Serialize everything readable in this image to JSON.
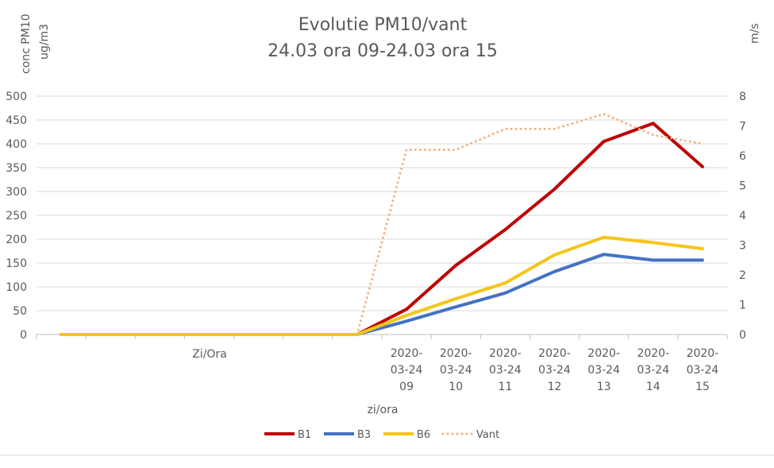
{
  "chart_data": {
    "type": "line",
    "title": "Evolutie PM10/vant",
    "subtitle": "24.03 ora 09-24.03 ora 15",
    "ylabel": "conc PM10",
    "ylabel_unit": "ug/m3",
    "y2label": "m/s",
    "xlabel": "zi/ora",
    "category_group_label": "Zi/Ora",
    "categories": [
      "",
      "",
      "",
      "",
      "",
      "",
      "",
      "2020-03-24 09",
      "2020-03-24 10",
      "2020-03-24 11",
      "2020-03-24 12",
      "2020-03-24 13",
      "2020-03-24 14",
      "2020-03-24 15"
    ],
    "category_lines": [
      [
        "2020-",
        "03-24",
        "09"
      ],
      [
        "2020-",
        "03-24",
        "10"
      ],
      [
        "2020-",
        "03-24",
        "11"
      ],
      [
        "2020-",
        "03-24",
        "12"
      ],
      [
        "2020-",
        "03-24",
        "13"
      ],
      [
        "2020-",
        "03-24",
        "14"
      ],
      [
        "2020-",
        "03-24",
        "15"
      ]
    ],
    "ylim": [
      0,
      500
    ],
    "yticks": [
      0,
      50,
      100,
      150,
      200,
      250,
      300,
      350,
      400,
      450,
      500
    ],
    "y2lim": [
      0,
      8
    ],
    "y2ticks": [
      0,
      1,
      2,
      3,
      4,
      5,
      6,
      7,
      8
    ],
    "grid": true,
    "legend_position": "bottom",
    "series": [
      {
        "name": "B1",
        "axis": "left",
        "color": "#C00000",
        "style": "solid",
        "values": [
          0,
          0,
          0,
          0,
          0,
          0,
          0,
          53,
          145,
          220,
          305,
          405,
          443,
          352
        ]
      },
      {
        "name": "B3",
        "axis": "left",
        "color": "#4472C4",
        "style": "solid",
        "values": [
          0,
          0,
          0,
          0,
          0,
          0,
          0,
          28,
          58,
          87,
          132,
          168,
          156,
          156
        ]
      },
      {
        "name": "B6",
        "axis": "left",
        "color": "#F5C518",
        "style": "solid",
        "values": [
          0,
          0,
          0,
          0,
          0,
          0,
          0,
          40,
          75,
          108,
          167,
          204,
          193,
          180
        ]
      },
      {
        "name": "Vant",
        "axis": "right",
        "color": "#F4B183",
        "style": "dotted",
        "values": [
          null,
          null,
          null,
          null,
          null,
          null,
          0,
          6.2,
          6.2,
          6.9,
          6.9,
          7.4,
          6.7,
          6.4
        ]
      }
    ]
  }
}
